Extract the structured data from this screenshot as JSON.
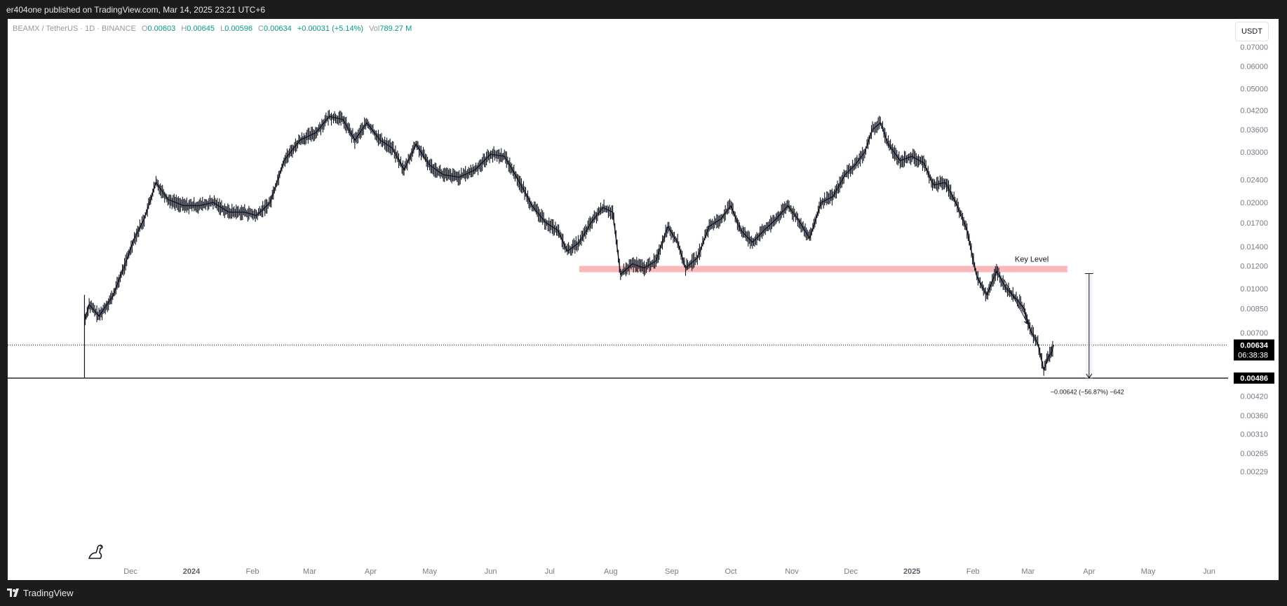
{
  "header": {
    "publisher_text": "er404one published on TradingView.com, Mar 14, 2025 23:21 UTC+6"
  },
  "legend": {
    "symbol": "BEAMX / TetherUS · 1D · BINANCE",
    "o_label": "O",
    "o_value": "0.00603",
    "h_label": "H",
    "h_value": "0.00645",
    "l_label": "L",
    "l_value": "0.00596",
    "c_label": "C",
    "c_value": "0.00634",
    "change": "+0.00031 (+5.14%)",
    "vol_label": "Vol",
    "vol_value": "789.27 M"
  },
  "currency_button": "USDT",
  "footer": {
    "brand": "TradingView"
  },
  "colors": {
    "candle": "#131722",
    "up_text": "#089981",
    "key_level_fill": "#f7b9bb",
    "price_tag_bg": "#000000"
  },
  "chart_data": {
    "type": "line",
    "scale": "log",
    "symbol": "BEAMX / TetherUS",
    "interval": "1D",
    "exchange": "BINANCE",
    "ylim": [
      0.0022,
      0.08
    ],
    "y_ticks": [
      "0.07000",
      "0.06000",
      "0.05000",
      "0.04200",
      "0.03600",
      "0.03000",
      "0.02400",
      "0.02000",
      "0.01700",
      "0.01400",
      "0.01200",
      "0.01000",
      "0.00850",
      "0.00700",
      "0.00420",
      "0.00360",
      "0.00310",
      "0.00265",
      "0.00229"
    ],
    "x_ticks": [
      {
        "label": "Dec",
        "date": "2023-12-01",
        "bold": false
      },
      {
        "label": "2024",
        "date": "2024-01-01",
        "bold": true
      },
      {
        "label": "Feb",
        "date": "2024-02-01",
        "bold": false
      },
      {
        "label": "Mar",
        "date": "2024-03-01",
        "bold": false
      },
      {
        "label": "Apr",
        "date": "2024-04-01",
        "bold": false
      },
      {
        "label": "May",
        "date": "2024-05-01",
        "bold": false
      },
      {
        "label": "Jun",
        "date": "2024-06-01",
        "bold": false
      },
      {
        "label": "Jul",
        "date": "2024-07-01",
        "bold": false
      },
      {
        "label": "Aug",
        "date": "2024-08-01",
        "bold": false
      },
      {
        "label": "Sep",
        "date": "2024-09-01",
        "bold": false
      },
      {
        "label": "Oct",
        "date": "2024-10-01",
        "bold": false
      },
      {
        "label": "Nov",
        "date": "2024-11-01",
        "bold": false
      },
      {
        "label": "Dec",
        "date": "2024-12-01",
        "bold": false
      },
      {
        "label": "2025",
        "date": "2025-01-01",
        "bold": true
      },
      {
        "label": "Feb",
        "date": "2025-02-01",
        "bold": false
      },
      {
        "label": "Mar",
        "date": "2025-03-01",
        "bold": false
      },
      {
        "label": "Apr",
        "date": "2025-04-01",
        "bold": false
      },
      {
        "label": "May",
        "date": "2025-05-01",
        "bold": false
      },
      {
        "label": "Jun",
        "date": "2025-06-01",
        "bold": false
      }
    ],
    "series": [
      {
        "name": "BEAMX / TetherUS",
        "points": [
          [
            "2023-11-08",
            0.0078
          ],
          [
            "2023-11-10",
            0.0088
          ],
          [
            "2023-11-15",
            0.008
          ],
          [
            "2023-11-22",
            0.0094
          ],
          [
            "2023-11-28",
            0.012
          ],
          [
            "2023-12-03",
            0.015
          ],
          [
            "2023-12-08",
            0.0175
          ],
          [
            "2023-12-14",
            0.0235
          ],
          [
            "2023-12-20",
            0.0205
          ],
          [
            "2023-12-28",
            0.0195
          ],
          [
            "2024-01-05",
            0.0195
          ],
          [
            "2024-01-12",
            0.02
          ],
          [
            "2024-01-20",
            0.0185
          ],
          [
            "2024-01-28",
            0.0185
          ],
          [
            "2024-02-03",
            0.018
          ],
          [
            "2024-02-10",
            0.02
          ],
          [
            "2024-02-17",
            0.028
          ],
          [
            "2024-02-25",
            0.033
          ],
          [
            "2024-03-04",
            0.035
          ],
          [
            "2024-03-11",
            0.04
          ],
          [
            "2024-03-18",
            0.039
          ],
          [
            "2024-03-24",
            0.033
          ],
          [
            "2024-03-30",
            0.038
          ],
          [
            "2024-04-06",
            0.033
          ],
          [
            "2024-04-12",
            0.031
          ],
          [
            "2024-04-18",
            0.026
          ],
          [
            "2024-04-24",
            0.032
          ],
          [
            "2024-05-01",
            0.027
          ],
          [
            "2024-05-08",
            0.025
          ],
          [
            "2024-05-16",
            0.0245
          ],
          [
            "2024-05-24",
            0.026
          ],
          [
            "2024-06-01",
            0.0295
          ],
          [
            "2024-06-08",
            0.029
          ],
          [
            "2024-06-15",
            0.024
          ],
          [
            "2024-06-22",
            0.0195
          ],
          [
            "2024-06-29",
            0.017
          ],
          [
            "2024-07-05",
            0.016
          ],
          [
            "2024-07-10",
            0.0135
          ],
          [
            "2024-07-16",
            0.0145
          ],
          [
            "2024-07-22",
            0.017
          ],
          [
            "2024-07-28",
            0.0192
          ],
          [
            "2024-08-02",
            0.0185
          ],
          [
            "2024-08-06",
            0.0112
          ],
          [
            "2024-08-12",
            0.0122
          ],
          [
            "2024-08-18",
            0.0118
          ],
          [
            "2024-08-24",
            0.0125
          ],
          [
            "2024-08-30",
            0.0165
          ],
          [
            "2024-09-04",
            0.0145
          ],
          [
            "2024-09-08",
            0.0118
          ],
          [
            "2024-09-14",
            0.0128
          ],
          [
            "2024-09-20",
            0.0165
          ],
          [
            "2024-09-26",
            0.0175
          ],
          [
            "2024-10-01",
            0.0195
          ],
          [
            "2024-10-06",
            0.016
          ],
          [
            "2024-10-12",
            0.0145
          ],
          [
            "2024-10-18",
            0.016
          ],
          [
            "2024-10-24",
            0.0175
          ],
          [
            "2024-10-30",
            0.0195
          ],
          [
            "2024-11-04",
            0.0175
          ],
          [
            "2024-11-10",
            0.015
          ],
          [
            "2024-11-16",
            0.02
          ],
          [
            "2024-11-22",
            0.021
          ],
          [
            "2024-11-28",
            0.025
          ],
          [
            "2024-12-03",
            0.027
          ],
          [
            "2024-12-08",
            0.03
          ],
          [
            "2024-12-12",
            0.036
          ],
          [
            "2024-12-16",
            0.038
          ],
          [
            "2024-12-20",
            0.032
          ],
          [
            "2024-12-26",
            0.028
          ],
          [
            "2025-01-01",
            0.029
          ],
          [
            "2025-01-07",
            0.0275
          ],
          [
            "2025-01-12",
            0.023
          ],
          [
            "2025-01-18",
            0.0235
          ],
          [
            "2025-01-24",
            0.0195
          ],
          [
            "2025-01-29",
            0.016
          ],
          [
            "2025-02-03",
            0.011
          ],
          [
            "2025-02-08",
            0.0095
          ],
          [
            "2025-02-13",
            0.0115
          ],
          [
            "2025-02-18",
            0.01
          ],
          [
            "2025-02-23",
            0.0092
          ],
          [
            "2025-02-27",
            0.0085
          ],
          [
            "2025-03-02",
            0.0072
          ],
          [
            "2025-03-06",
            0.0064
          ],
          [
            "2025-03-09",
            0.0052
          ],
          [
            "2025-03-11",
            0.0057
          ],
          [
            "2025-03-13",
            0.006
          ],
          [
            "2025-03-14",
            0.00634
          ]
        ]
      }
    ],
    "key_level": {
      "label": "Key Level",
      "low": 0.0114,
      "high": 0.012,
      "start": "2024-07-16",
      "end": "2025-03-21"
    },
    "arrow_annotation": {
      "from_date": "2025-02-17",
      "from_value": 0.0107,
      "to_date": "2025-03-01",
      "to_value": 0.0075
    },
    "measure": {
      "date": "2025-04-01",
      "from_value": 0.01128,
      "to_value": 0.00486,
      "label": "−0.00642 (−56.87%) −642"
    },
    "current_price": {
      "value": 0.00634,
      "label": "0.00634",
      "countdown": "06:38:38"
    },
    "low_line": {
      "value": 0.00486,
      "label": "0.00486"
    }
  }
}
